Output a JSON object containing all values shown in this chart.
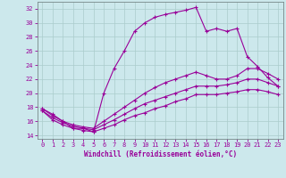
{
  "title": "",
  "xlabel": "Windchill (Refroidissement éolien,°C)",
  "ylabel": "",
  "bg_color": "#cce8ec",
  "line_color": "#990099",
  "grid_color": "#aacccc",
  "xlim": [
    -0.5,
    23.5
  ],
  "ylim": [
    13.5,
    33.0
  ],
  "xticks": [
    0,
    1,
    2,
    3,
    4,
    5,
    6,
    7,
    8,
    9,
    10,
    11,
    12,
    13,
    14,
    15,
    16,
    17,
    18,
    19,
    20,
    21,
    22,
    23
  ],
  "yticks": [
    14,
    16,
    18,
    20,
    22,
    24,
    26,
    28,
    30,
    32
  ],
  "series1_x": [
    0,
    1,
    2,
    3,
    4,
    5,
    6,
    7,
    8,
    9,
    10,
    11,
    12,
    13,
    14,
    15,
    16,
    17,
    18,
    19,
    20,
    21,
    22,
    23
  ],
  "series1_y": [
    17.8,
    17.0,
    16.0,
    15.0,
    15.0,
    14.5,
    20.0,
    23.5,
    26.0,
    28.8,
    30.0,
    30.8,
    31.2,
    31.5,
    31.8,
    32.2,
    28.8,
    29.2,
    28.8,
    29.2,
    25.2,
    23.8,
    22.2,
    21.0
  ],
  "series2_x": [
    0,
    1,
    2,
    3,
    4,
    5,
    6,
    7,
    8,
    9,
    10,
    11,
    12,
    13,
    14,
    15,
    16,
    17,
    18,
    19,
    20,
    21,
    22,
    23
  ],
  "series2_y": [
    17.8,
    16.8,
    16.0,
    15.5,
    15.2,
    15.0,
    16.0,
    17.0,
    18.0,
    19.0,
    20.0,
    20.8,
    21.5,
    22.0,
    22.5,
    23.0,
    22.5,
    22.0,
    22.0,
    22.5,
    23.5,
    23.5,
    22.8,
    22.0
  ],
  "series3_x": [
    0,
    1,
    2,
    3,
    4,
    5,
    6,
    7,
    8,
    9,
    10,
    11,
    12,
    13,
    14,
    15,
    16,
    17,
    18,
    19,
    20,
    21,
    22,
    23
  ],
  "series3_y": [
    17.5,
    16.5,
    15.8,
    15.3,
    15.0,
    14.8,
    15.5,
    16.2,
    17.0,
    17.8,
    18.5,
    19.0,
    19.5,
    20.0,
    20.5,
    21.0,
    21.0,
    21.0,
    21.2,
    21.5,
    22.0,
    22.0,
    21.5,
    21.0
  ],
  "series4_x": [
    0,
    1,
    2,
    3,
    4,
    5,
    6,
    7,
    8,
    9,
    10,
    11,
    12,
    13,
    14,
    15,
    16,
    17,
    18,
    19,
    20,
    21,
    22,
    23
  ],
  "series4_y": [
    17.5,
    16.2,
    15.5,
    15.0,
    14.7,
    14.5,
    15.0,
    15.5,
    16.2,
    16.8,
    17.2,
    17.8,
    18.2,
    18.8,
    19.2,
    19.8,
    19.8,
    19.8,
    20.0,
    20.2,
    20.5,
    20.5,
    20.2,
    19.8
  ],
  "marker": "P",
  "marker_size": 2.5,
  "linewidth": 0.8,
  "tick_fontsize": 5.0,
  "xlabel_fontsize": 5.5
}
